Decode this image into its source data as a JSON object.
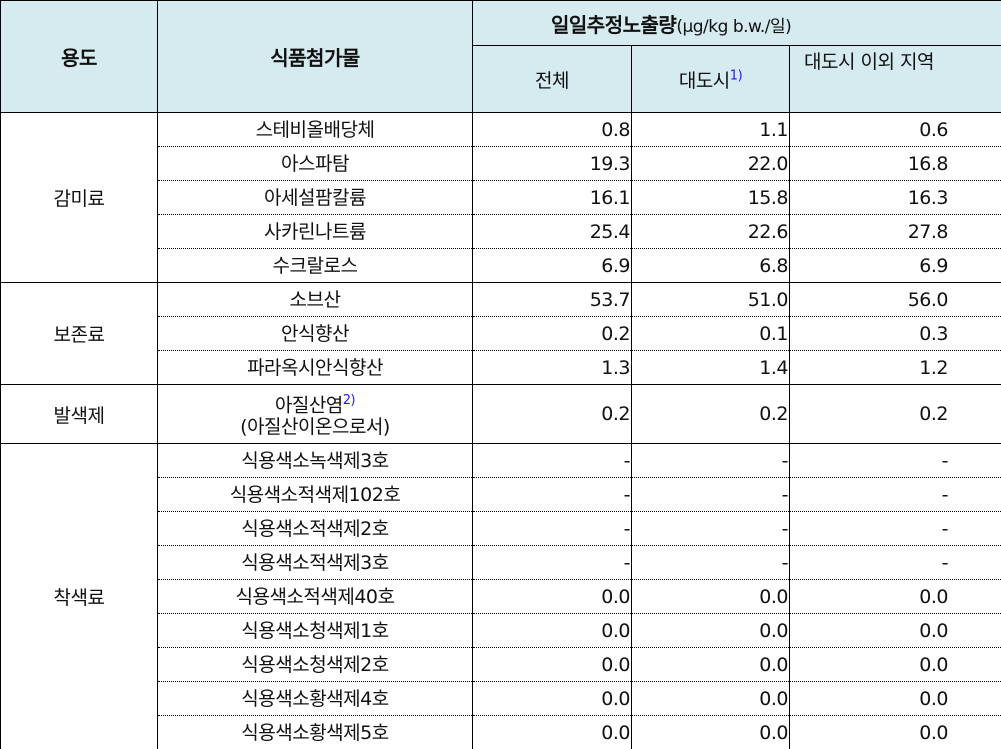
{
  "header": {
    "use": "용도",
    "additive": "식품첨가물",
    "intake_title": "일일추정노출량",
    "intake_unit": "(μg/kg b.w./일)",
    "col_total": "전체",
    "col_metro": "대도시",
    "col_metro_note": "1)",
    "col_nonmetro": "대도시 이외 지역"
  },
  "groups": [
    {
      "use": "감미료",
      "rows": [
        {
          "name": "스테비올배당체",
          "total": "0.8",
          "metro": "1.1",
          "nonmetro": "0.6"
        },
        {
          "name": "아스파탐",
          "total": "19.3",
          "metro": "22.0",
          "nonmetro": "16.8"
        },
        {
          "name": "아세설팜칼륨",
          "total": "16.1",
          "metro": "15.8",
          "nonmetro": "16.3"
        },
        {
          "name": "사카린나트륨",
          "total": "25.4",
          "metro": "22.6",
          "nonmetro": "27.8"
        },
        {
          "name": "수크랄로스",
          "total": "6.9",
          "metro": "6.8",
          "nonmetro": "6.9"
        }
      ]
    },
    {
      "use": "보존료",
      "rows": [
        {
          "name": "소브산",
          "total": "53.7",
          "metro": "51.0",
          "nonmetro": "56.0"
        },
        {
          "name": "안식향산",
          "total": "0.2",
          "metro": "0.1",
          "nonmetro": "0.3"
        },
        {
          "name": "파라옥시안식향산",
          "total": "1.3",
          "metro": "1.4",
          "nonmetro": "1.2"
        }
      ]
    },
    {
      "use": "발색제",
      "rows": [
        {
          "name": "아질산염",
          "note": "2)",
          "name2": "(아질산이온으로서)",
          "total": "0.2",
          "metro": "0.2",
          "nonmetro": "0.2"
        }
      ]
    },
    {
      "use": "착색료",
      "rows": [
        {
          "name": "식용색소녹색제3호",
          "total": "-",
          "metro": "-",
          "nonmetro": "-"
        },
        {
          "name": "식용색소적색제102호",
          "total": "-",
          "metro": "-",
          "nonmetro": "-"
        },
        {
          "name": "식용색소적색제2호",
          "total": "-",
          "metro": "-",
          "nonmetro": "-"
        },
        {
          "name": "식용색소적색제3호",
          "total": "-",
          "metro": "-",
          "nonmetro": "-"
        },
        {
          "name": "식용색소적색제40호",
          "total": "0.0",
          "metro": "0.0",
          "nonmetro": "0.0"
        },
        {
          "name": "식용색소청색제1호",
          "total": "0.0",
          "metro": "0.0",
          "nonmetro": "0.0"
        },
        {
          "name": "식용색소청색제2호",
          "total": "0.0",
          "metro": "0.0",
          "nonmetro": "0.0"
        },
        {
          "name": "식용색소황색제4호",
          "total": "0.0",
          "metro": "0.0",
          "nonmetro": "0.0"
        },
        {
          "name": "식용색소황색제5호",
          "total": "0.0",
          "metro": "0.0",
          "nonmetro": "0.0"
        }
      ]
    }
  ]
}
